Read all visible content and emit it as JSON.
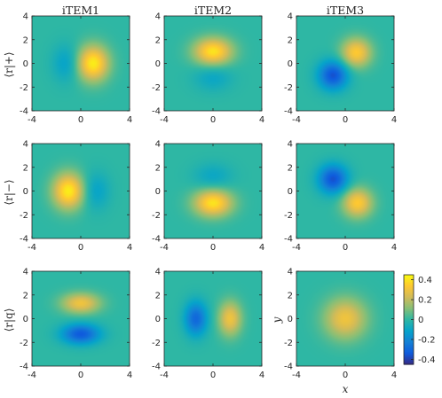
{
  "chart_data": {
    "type": "heatmap",
    "column_titles": [
      "iTEM1",
      "iTEM2",
      "iTEM3"
    ],
    "row_labels": [
      "⟨r|+⟩",
      "⟨r|−⟩",
      "⟨r|q⟩"
    ],
    "xlabel": "x",
    "ylabel": "y",
    "xlim": [
      -4,
      4
    ],
    "ylim": [
      -4,
      4
    ],
    "xticks": [
      -4,
      0,
      4
    ],
    "yticks": [
      -4,
      -2,
      0,
      2,
      4
    ],
    "colorbar": {
      "range": [
        -0.45,
        0.45
      ],
      "ticks": [
        -0.4,
        -0.2,
        0,
        0.2,
        0.4
      ],
      "tick_labels": [
        "-0.4",
        "-0.2",
        "0",
        "0.2",
        "0.4"
      ],
      "colormap": "parula"
    },
    "panels": [
      {
        "row": 0,
        "col": 0,
        "blobs": [
          {
            "x": 1.0,
            "y": 0.0,
            "sx": 0.9,
            "sy": 1.05,
            "a": 0.42
          },
          {
            "x": -1.2,
            "y": 0.0,
            "sx": 0.8,
            "sy": 1.1,
            "a": -0.12
          }
        ]
      },
      {
        "row": 0,
        "col": 1,
        "blobs": [
          {
            "x": 0.0,
            "y": 1.0,
            "sx": 1.1,
            "sy": 0.8,
            "a": 0.4
          },
          {
            "x": 0.0,
            "y": -1.2,
            "sx": 1.1,
            "sy": 0.8,
            "a": -0.1
          }
        ]
      },
      {
        "row": 0,
        "col": 2,
        "blobs": [
          {
            "x": 0.9,
            "y": 0.9,
            "sx": 0.85,
            "sy": 0.85,
            "a": 0.34
          },
          {
            "x": -1.0,
            "y": -1.0,
            "sx": 0.85,
            "sy": 0.85,
            "a": -0.36
          }
        ]
      },
      {
        "row": 1,
        "col": 0,
        "blobs": [
          {
            "x": -1.0,
            "y": 0.0,
            "sx": 0.9,
            "sy": 1.05,
            "a": 0.42
          },
          {
            "x": 1.2,
            "y": 0.0,
            "sx": 0.8,
            "sy": 1.1,
            "a": -0.12
          }
        ]
      },
      {
        "row": 1,
        "col": 1,
        "blobs": [
          {
            "x": 0.0,
            "y": -1.0,
            "sx": 1.1,
            "sy": 0.8,
            "a": 0.4
          },
          {
            "x": 0.0,
            "y": 1.2,
            "sx": 1.1,
            "sy": 0.8,
            "a": -0.1
          }
        ]
      },
      {
        "row": 1,
        "col": 2,
        "blobs": [
          {
            "x": -1.0,
            "y": 1.0,
            "sx": 0.85,
            "sy": 0.85,
            "a": -0.36
          },
          {
            "x": 1.0,
            "y": -1.0,
            "sx": 0.85,
            "sy": 0.85,
            "a": 0.34
          }
        ]
      },
      {
        "row": 2,
        "col": 0,
        "blobs": [
          {
            "x": 0.0,
            "y": 1.3,
            "sx": 1.1,
            "sy": 0.6,
            "a": 0.3
          },
          {
            "x": 0.0,
            "y": -1.3,
            "sx": 1.1,
            "sy": 0.6,
            "a": -0.34
          }
        ]
      },
      {
        "row": 2,
        "col": 1,
        "blobs": [
          {
            "x": -1.4,
            "y": 0.0,
            "sx": 0.65,
            "sy": 1.0,
            "a": -0.3
          },
          {
            "x": 1.4,
            "y": 0.0,
            "sx": 0.65,
            "sy": 1.0,
            "a": 0.3
          }
        ]
      },
      {
        "row": 2,
        "col": 2,
        "blobs": [
          {
            "x": 0.0,
            "y": 0.0,
            "sx": 1.2,
            "sy": 1.2,
            "a": 0.3
          }
        ]
      }
    ],
    "grid": false
  },
  "colors": {
    "axis": "#262626",
    "parula_stops": [
      "#352a87",
      "#0f5cdd",
      "#1481d6",
      "#06a4ca",
      "#2eb7a4",
      "#87bf77",
      "#d1bb59",
      "#fec832",
      "#f9fb0e"
    ]
  }
}
